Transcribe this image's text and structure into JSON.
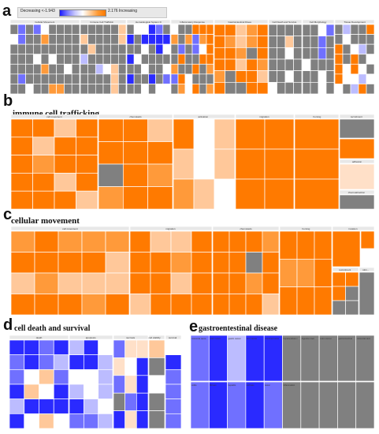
{
  "panels": {
    "a": {
      "letter": "a"
    },
    "b": {
      "letter": "b",
      "title": "immune cell trafficking"
    },
    "c": {
      "letter": "c",
      "title": "cellular movement"
    },
    "d": {
      "letter": "d",
      "title": "cell death and survival"
    },
    "e": {
      "letter": "e",
      "title": "gastroentestinal disease"
    }
  },
  "legend": {
    "low_label": "Decreasing <-1.943",
    "high_label": "2.176 Increasing"
  },
  "colors": {
    "orange": "#ff7a00",
    "orange_mid": "#ff9a3a",
    "orange_light": "#ffc89a",
    "peach": "#ffe0c8",
    "gray": "#808080",
    "blue": "#2a2aff",
    "blue_mid": "#7070ff",
    "blue_light": "#bcbcff",
    "white": "#ffffff",
    "header": "#e8e8e8",
    "teal": "#9ee0e6"
  },
  "chart_data": [
    {
      "panel": "a",
      "type": "heatmap",
      "subtype": "treemap",
      "color_scale": {
        "min": -1.943,
        "max": 2.176,
        "low_color": "blue",
        "high_color": "orange"
      },
      "groups": [
        "Cellular Movement",
        "Immune Cell Trafficking",
        "Hematological System Development and Function",
        "Inflammatory Response",
        "Gastrointestinal Disease",
        "Cell Death and Survival",
        "Cell Morphology",
        "Tissue Development",
        "Lipid Metabolism",
        "Small Molecule Biochemistry",
        "Cellular Development",
        "Cellular Function and Maintenance",
        "Inflammatory Disease",
        "Organismal Survival"
      ]
    },
    {
      "panel": "b",
      "type": "heatmap",
      "subtype": "treemap",
      "title": "immune cell trafficking",
      "groups": [
        "cell movement",
        "chemotaxis",
        "activation",
        "migration",
        "homing",
        "recruitment"
      ],
      "subgroups": [
        "adhesion",
        "chemoattraction"
      ]
    },
    {
      "panel": "c",
      "type": "heatmap",
      "subtype": "treemap",
      "title": "cellular movement",
      "groups": [
        "cell movement",
        "migration",
        "chemotaxis",
        "homing",
        "invasion"
      ],
      "subgroups": [
        "recruitment",
        "stim..."
      ]
    },
    {
      "panel": "d",
      "type": "heatmap",
      "subtype": "treemap",
      "title": "cell death and survival",
      "groups": [
        "death",
        "apoptosis",
        "necrosis",
        "cell viability",
        "survival"
      ],
      "subgroups": [
        "cell death",
        "necrosis of",
        "apoptosis of",
        "cell survival"
      ]
    },
    {
      "panel": "e",
      "type": "heatmap",
      "subtype": "treemap",
      "title": "gastroentestinal disease",
      "groups": [
        "colorectal cancer",
        "colon tumor",
        "gastric cancer",
        "liver cancer",
        "intestinal cancer",
        "hepatocellular carcinoma",
        "digestive tract cancer",
        "colon cancer",
        "gastrointestinal tumor",
        "colorectal carcinoma",
        "pancreatic cancer",
        "liver tumor",
        "liver lesion",
        "hepatic steatosis"
      ],
      "cells": [
        "colitis",
        "fibrosis",
        "hepatitis",
        "cirrhosis",
        "lesion",
        "inflammation"
      ]
    }
  ]
}
